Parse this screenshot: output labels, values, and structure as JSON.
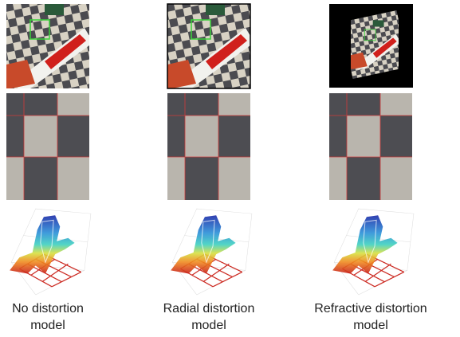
{
  "captions": [
    {
      "lines": [
        "No distortion",
        "model"
      ]
    },
    {
      "lines": [
        "Radial distortion",
        "model"
      ]
    },
    {
      "lines": [
        "Refractive distortion",
        "model"
      ]
    }
  ]
}
